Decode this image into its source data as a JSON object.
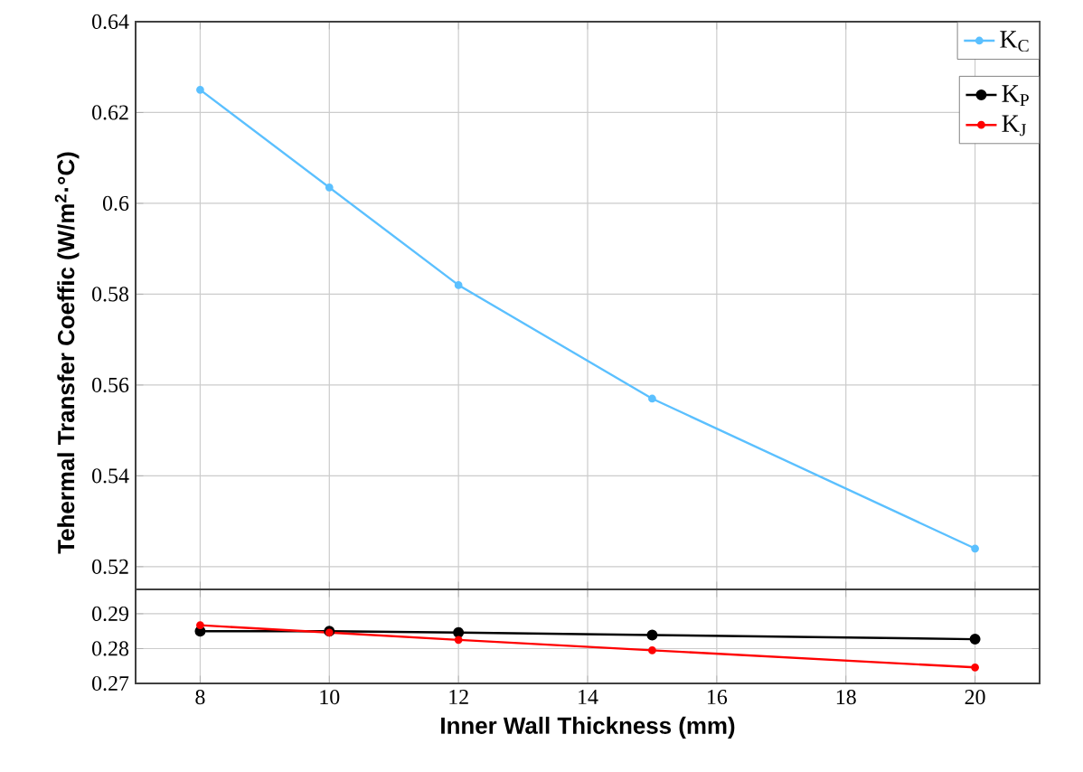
{
  "chart_data": [
    {
      "type": "line",
      "ylabel": "Tehermal Transfer Coeffic (W/m$^{2}$·°C)",
      "x": [
        8,
        10,
        12,
        15,
        20
      ],
      "series": [
        {
          "name": "K$_{C}$",
          "color": "#5bc0ff",
          "values": [
            0.625,
            0.6035,
            0.582,
            0.557,
            0.524
          ]
        }
      ],
      "xlim": [
        7,
        21
      ],
      "ylim": [
        0.515,
        0.64
      ],
      "yticks": [
        0.52,
        0.54,
        0.56,
        0.58,
        0.6,
        0.62,
        0.64
      ],
      "tick_labels": "y",
      "grid": true,
      "legend": "top right",
      "marker": "circle",
      "line_style": "solid"
    },
    {
      "type": "line",
      "xlabel": "Inner Wall Thickness (mm)",
      "x": [
        8,
        10,
        12,
        15,
        20
      ],
      "series": [
        {
          "name": "K$_{P}$",
          "color": "#000000",
          "values": [
            0.285,
            0.285,
            0.2846,
            0.2839,
            0.2827
          ]
        },
        {
          "name": "K$_{J}$",
          "color": "#ff0000",
          "values": [
            0.2867,
            0.2846,
            0.2825,
            0.2795,
            0.2746
          ]
        }
      ],
      "xlim": [
        7,
        21
      ],
      "xticks": [
        8,
        10,
        12,
        14,
        16,
        18,
        20
      ],
      "ylim": [
        0.27,
        0.297
      ],
      "yticks": [
        0.27,
        0.28,
        0.29
      ],
      "grid": true,
      "legend": "top right",
      "marker": "circle",
      "line_style": "solid"
    }
  ]
}
